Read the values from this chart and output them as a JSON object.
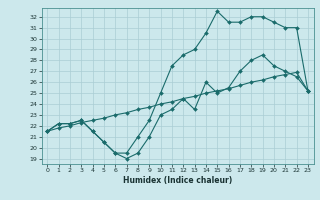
{
  "xlabel": "Humidex (Indice chaleur)",
  "ylabel": "",
  "xlim": [
    -0.5,
    23.5
  ],
  "ylim": [
    18.5,
    32.8
  ],
  "yticks": [
    19,
    20,
    21,
    22,
    23,
    24,
    25,
    26,
    27,
    28,
    29,
    30,
    31,
    32
  ],
  "xticks": [
    0,
    1,
    2,
    3,
    4,
    5,
    6,
    7,
    8,
    9,
    10,
    11,
    12,
    13,
    14,
    15,
    16,
    17,
    18,
    19,
    20,
    21,
    22,
    23
  ],
  "bg_color": "#cce8ec",
  "line_color": "#1a6b6b",
  "grid_color": "#aacdd4",
  "line1_x": [
    0,
    1,
    2,
    3,
    4,
    5,
    6,
    7,
    8,
    9,
    10,
    11,
    12,
    13,
    14,
    15,
    16,
    17,
    18,
    19,
    20,
    21,
    22,
    23
  ],
  "line1_y": [
    21.5,
    22.2,
    22.2,
    22.5,
    21.5,
    20.5,
    19.5,
    19.0,
    19.5,
    21.0,
    23.0,
    23.5,
    24.5,
    23.5,
    26.0,
    25.0,
    25.5,
    27.0,
    28.0,
    28.5,
    27.5,
    27.0,
    26.5,
    25.2
  ],
  "line2_x": [
    0,
    1,
    2,
    3,
    4,
    5,
    6,
    7,
    8,
    9,
    10,
    11,
    12,
    13,
    14,
    15,
    16,
    17,
    18,
    19,
    20,
    21,
    22,
    23
  ],
  "line2_y": [
    21.5,
    21.8,
    22.0,
    22.3,
    22.5,
    22.7,
    23.0,
    23.2,
    23.5,
    23.7,
    24.0,
    24.2,
    24.5,
    24.7,
    25.0,
    25.2,
    25.4,
    25.7,
    26.0,
    26.2,
    26.5,
    26.7,
    26.9,
    25.2
  ],
  "line3_x": [
    0,
    1,
    2,
    3,
    4,
    5,
    6,
    7,
    8,
    9,
    10,
    11,
    12,
    13,
    14,
    15,
    16,
    17,
    18,
    19,
    20,
    21,
    22,
    23
  ],
  "line3_y": [
    21.5,
    22.2,
    22.2,
    22.5,
    21.5,
    20.5,
    19.5,
    19.5,
    21.0,
    22.5,
    25.0,
    27.5,
    28.5,
    29.0,
    30.5,
    32.5,
    31.5,
    31.5,
    32.0,
    32.0,
    31.5,
    31.0,
    31.0,
    25.2
  ]
}
